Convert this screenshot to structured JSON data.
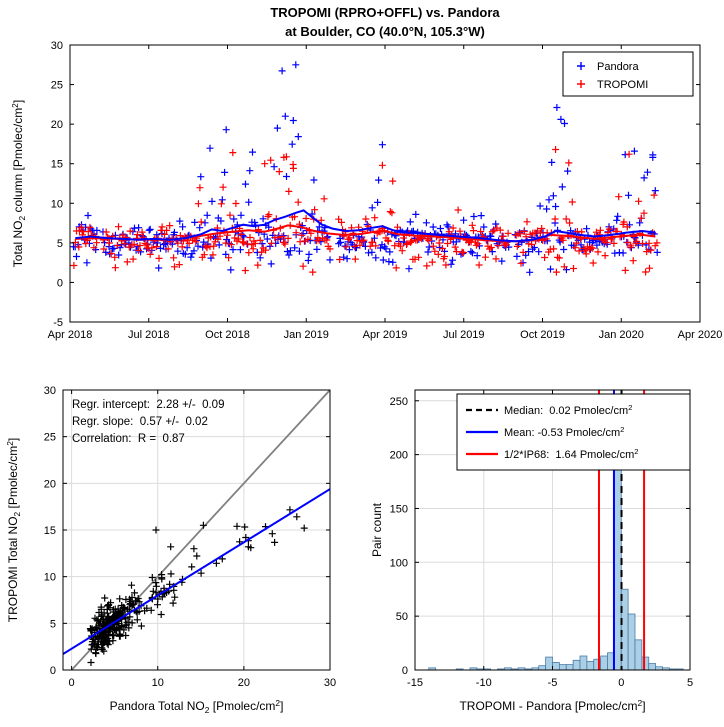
{
  "title": {
    "line1": "TROPOMI (RPRO+OFFL) vs. Pandora",
    "line2": "at Boulder, CO (40.0°N, 105.3°W)"
  },
  "chart_data": [
    {
      "id": "timeseries",
      "type": "scatter",
      "title": "TROPOMI (RPRO+OFFL) vs. Pandora at Boulder, CO (40.0°N, 105.3°W)",
      "xlabel": "",
      "ylabel": "Total NO_2_ column [Pmolec/cm^2^]",
      "xlim": [
        0,
        24
      ],
      "ylim": [
        -5,
        30
      ],
      "xtick_values": [
        0,
        3,
        6,
        9,
        12,
        15,
        18,
        21,
        24
      ],
      "xtick_labels": [
        "Apr 2018",
        "Jul 2018",
        "Oct 2018",
        "Jan 2019",
        "Apr 2019",
        "Jul 2019",
        "Oct 2019",
        "Jan 2020",
        "Apr 2020"
      ],
      "ytick_values": [
        -5,
        0,
        5,
        10,
        15,
        20,
        25,
        30
      ],
      "grid": false,
      "legend": {
        "position": "northeast",
        "entries": [
          {
            "label": "Pandora",
            "color": "#0000ff",
            "marker": "+"
          },
          {
            "label": "TROPOMI",
            "color": "#ff0000",
            "marker": "+"
          }
        ]
      },
      "series": [
        {
          "name": "Pandora",
          "color": "#0000ff",
          "marker": "+",
          "generation": {
            "seed": 101,
            "t_start": 0.15,
            "t_end": 22.4,
            "dt": 0.055,
            "base_mean": 5.4,
            "base_sd": 1.25,
            "low_prob": 0.06,
            "low_min": 1.2,
            "low_max": 3.4,
            "spike_regions": [
              [
                4.8,
                6.2,
                0.22,
                20
              ],
              [
                6.2,
                7.6,
                0.3,
                20
              ],
              [
                7.6,
                9.2,
                0.32,
                27.5
              ],
              [
                9.2,
                10.0,
                0.15,
                13
              ],
              [
                11.5,
                12.4,
                0.18,
                17.5
              ],
              [
                12.9,
                14.1,
                0.08,
                10.5
              ],
              [
                17.8,
                19.2,
                0.22,
                22
              ],
              [
                20.8,
                22.4,
                0.2,
                17
              ]
            ],
            "gaps": [
              [
                1.05,
                1.25
              ],
              [
                9.9,
                10.2
              ],
              [
                16.75,
                16.95
              ]
            ]
          },
          "trend": [
            [
              0.2,
              5.6
            ],
            [
              0.8,
              5.8
            ],
            [
              1.4,
              5.6
            ],
            [
              2.0,
              5.5
            ],
            [
              2.6,
              5.4
            ],
            [
              3.2,
              5.5
            ],
            [
              3.8,
              5.4
            ],
            [
              4.4,
              5.6
            ],
            [
              5.0,
              6.1
            ],
            [
              5.4,
              6.7
            ],
            [
              5.8,
              6.5
            ],
            [
              6.2,
              6.9
            ],
            [
              6.6,
              7.3
            ],
            [
              7.0,
              7.1
            ],
            [
              7.4,
              7.3
            ],
            [
              7.8,
              7.9
            ],
            [
              8.2,
              8.3
            ],
            [
              8.6,
              8.8
            ],
            [
              8.9,
              9.1
            ],
            [
              9.2,
              8.3
            ],
            [
              9.6,
              7.3
            ],
            [
              10.0,
              6.8
            ],
            [
              10.5,
              6.5
            ],
            [
              11.0,
              6.6
            ],
            [
              11.5,
              6.9
            ],
            [
              11.9,
              7.1
            ],
            [
              12.3,
              6.6
            ],
            [
              12.8,
              6.3
            ],
            [
              13.4,
              6.2
            ],
            [
              14.0,
              6.0
            ],
            [
              14.8,
              5.8
            ],
            [
              15.6,
              5.6
            ],
            [
              16.4,
              5.3
            ],
            [
              17.0,
              5.2
            ],
            [
              17.6,
              5.4
            ],
            [
              18.1,
              5.8
            ],
            [
              18.5,
              6.5
            ],
            [
              18.9,
              6.3
            ],
            [
              19.4,
              6.0
            ],
            [
              20.0,
              5.8
            ],
            [
              20.6,
              6.0
            ],
            [
              21.2,
              6.3
            ],
            [
              21.8,
              6.5
            ],
            [
              22.3,
              6.3
            ]
          ],
          "notable_points": [
            [
              8.6,
              27.5
            ],
            [
              8.2,
              21.0
            ],
            [
              7.9,
              19.5
            ],
            [
              5.95,
              19.3
            ],
            [
              11.9,
              17.4
            ],
            [
              18.55,
              22.1
            ],
            [
              18.7,
              20.6
            ],
            [
              21.5,
              16.6
            ],
            [
              22.2,
              15.8
            ]
          ]
        },
        {
          "name": "TROPOMI",
          "color": "#ff0000",
          "marker": "+",
          "generation": {
            "seed": 555,
            "t_start": 0.15,
            "t_end": 22.4,
            "dt": 0.055,
            "base_mean": 5.4,
            "base_sd": 1.1,
            "low_prob": 0.08,
            "low_min": 1.3,
            "low_max": 3.2,
            "spike_regions": [
              [
                4.8,
                6.2,
                0.2,
                16.5
              ],
              [
                6.2,
                7.6,
                0.28,
                15
              ],
              [
                7.6,
                9.2,
                0.28,
                16
              ],
              [
                9.2,
                10.0,
                0.14,
                12
              ],
              [
                11.5,
                12.4,
                0.15,
                14.8
              ],
              [
                17.8,
                19.2,
                0.18,
                17
              ],
              [
                20.8,
                22.4,
                0.18,
                16
              ]
            ],
            "gaps": [
              [
                1.05,
                1.25
              ],
              [
                9.9,
                10.2
              ],
              [
                16.75,
                16.95
              ]
            ]
          },
          "trend": [
            [
              0.2,
              5.5
            ],
            [
              1.0,
              5.6
            ],
            [
              1.8,
              5.5
            ],
            [
              2.6,
              5.4
            ],
            [
              3.4,
              5.4
            ],
            [
              4.2,
              5.5
            ],
            [
              5.0,
              5.9
            ],
            [
              5.6,
              6.2
            ],
            [
              6.2,
              6.4
            ],
            [
              6.8,
              6.6
            ],
            [
              7.4,
              6.4
            ],
            [
              7.9,
              6.8
            ],
            [
              8.3,
              7.2
            ],
            [
              8.8,
              7.0
            ],
            [
              9.3,
              6.5
            ],
            [
              9.8,
              6.2
            ],
            [
              10.4,
              6.0
            ],
            [
              11.0,
              6.1
            ],
            [
              11.6,
              6.4
            ],
            [
              12.0,
              6.5
            ],
            [
              12.5,
              6.1
            ],
            [
              13.2,
              5.9
            ],
            [
              14.0,
              5.8
            ],
            [
              14.8,
              5.6
            ],
            [
              15.6,
              5.4
            ],
            [
              16.4,
              5.2
            ],
            [
              17.2,
              5.2
            ],
            [
              17.8,
              5.5
            ],
            [
              18.3,
              6.0
            ],
            [
              18.8,
              5.9
            ],
            [
              19.4,
              5.7
            ],
            [
              20.0,
              5.5
            ],
            [
              20.6,
              5.7
            ],
            [
              21.2,
              5.9
            ],
            [
              21.8,
              6.0
            ],
            [
              22.3,
              5.8
            ]
          ],
          "notable_points": [
            [
              6.2,
              16.4
            ],
            [
              8.15,
              15.8
            ],
            [
              8.5,
              14.9
            ],
            [
              11.9,
              14.8
            ],
            [
              18.5,
              16.8
            ],
            [
              19.0,
              15.1
            ],
            [
              21.3,
              16.2
            ]
          ]
        }
      ]
    },
    {
      "id": "correlation_scatter",
      "type": "scatter",
      "xlabel": "Pandora Total NO_2_ [Pmolec/cm^2^]",
      "ylabel": "TROPOMI Total NO_2_ [Pmolec/cm^2^]",
      "xlim": [
        -1,
        30
      ],
      "ylim": [
        0,
        30
      ],
      "xtick_values": [
        0,
        10,
        20,
        30
      ],
      "ytick_values": [
        0,
        5,
        10,
        15,
        20,
        25,
        30
      ],
      "grid": true,
      "marker": "+",
      "marker_color": "#000000",
      "annotation_lines": [
        "Regr. intercept:  2.28 +/-  0.09",
        "Regr. slope:  0.57 +/-  0.02",
        "Correlation:  R =  0.87"
      ],
      "regression": {
        "intercept": 2.28,
        "intercept_err": 0.09,
        "slope": 0.57,
        "slope_err": 0.02,
        "correlation_R": 0.87,
        "line_color": "#0000ff"
      },
      "identity_line": {
        "slope": 1,
        "intercept": 0,
        "color": "#808080"
      },
      "generation": {
        "seed": 202,
        "n": 262,
        "noise_sd": 1.05,
        "p_high": 0.05,
        "high_min": 12,
        "high_span": 15,
        "p_mid": 0.15,
        "mid_min": 6,
        "mid_span": 6,
        "core_base": 1.8,
        "core_gsd": 2.0,
        "core_u": 2.5,
        "x_clip": [
          1,
          28
        ],
        "y_clip": [
          0.8,
          19.0
        ]
      },
      "notable_points": [
        [
          27.0,
          15.2
        ],
        [
          23.3,
          14.6
        ],
        [
          20.8,
          13.1
        ],
        [
          19.2,
          15.4
        ],
        [
          17.5,
          11.9
        ],
        [
          15.3,
          15.5
        ],
        [
          14.2,
          13.0
        ],
        [
          12.8,
          9.4
        ],
        [
          11.5,
          13.2
        ],
        [
          9.8,
          15.0
        ]
      ]
    },
    {
      "id": "difference_histogram",
      "type": "histogram",
      "xlabel": "TROPOMI - Pandora [Pmolec/cm^2^]",
      "ylabel": "Pair count",
      "xlim": [
        -15,
        5
      ],
      "ylim": [
        0,
        260
      ],
      "xtick_values": [
        -15,
        -10,
        -5,
        0,
        5
      ],
      "ytick_values": [
        0,
        50,
        100,
        150,
        200,
        250
      ],
      "grid": true,
      "bar_fill": "#abd0e6",
      "bar_edge": "#4a7aa8",
      "bin_start": -15,
      "bin_width": 0.5,
      "counts": [
        0,
        0,
        2,
        0,
        0,
        0,
        1,
        0,
        2,
        1,
        1,
        0,
        1,
        2,
        1,
        2,
        1,
        2,
        4,
        12,
        7,
        5,
        5,
        9,
        13,
        8,
        10,
        13,
        16,
        255,
        75,
        52,
        28,
        12,
        6,
        3,
        2,
        1,
        1,
        0
      ],
      "stats": {
        "median": 0.02,
        "mean": -0.53,
        "half_ip68": 1.64
      },
      "ref_lines": [
        {
          "name": "median",
          "values": [
            0.02
          ],
          "color": "#000000",
          "style": "dashed",
          "label": "Median:  0.02 Pmolec/cm^2^"
        },
        {
          "name": "mean",
          "values": [
            -0.53
          ],
          "color": "#0000ff",
          "style": "solid",
          "label": "Mean: -0.53 Pmolec/cm^2^"
        },
        {
          "name": "half-ip68",
          "values": [
            -1.62,
            1.66
          ],
          "color": "#ff0000",
          "style": "solid",
          "label": "1/2*IP68:  1.64 Pmolec/cm^2^"
        }
      ]
    }
  ]
}
